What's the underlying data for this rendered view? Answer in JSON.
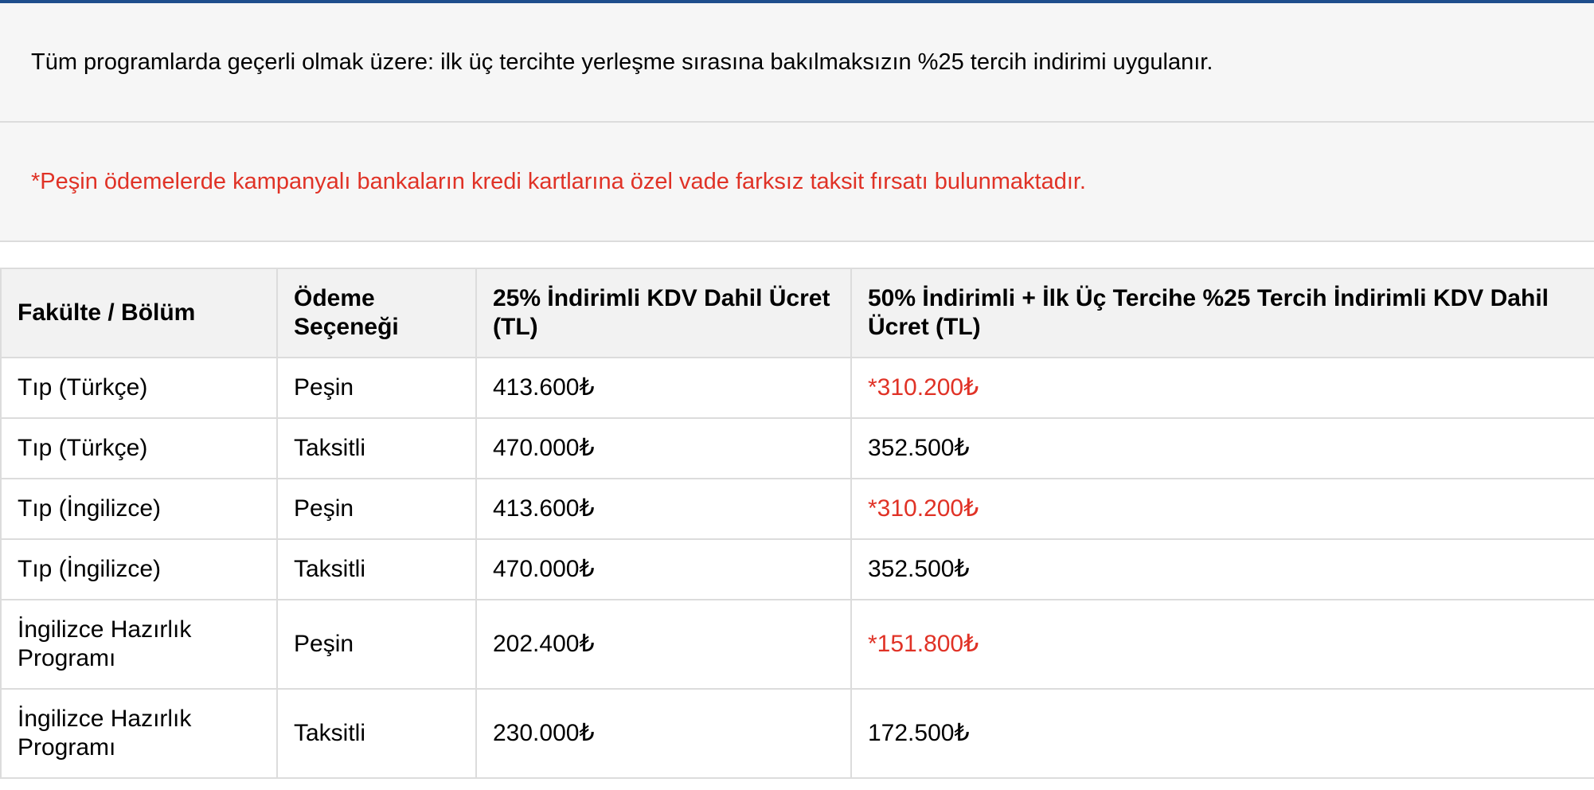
{
  "notice_general": "Tüm programlarda geçerli olmak üzere: ilk üç tercihte yerleşme sırasına bakılmaksızın %25 tercih indirimi uygulanır.",
  "notice_installment": "*Peşin ödemelerde kampanyalı bankaların kredi kartlarına özel vade farksız taksit fırsatı bulunmaktadır.",
  "colors": {
    "accent_bar": "#1f4e8c",
    "highlight_red": "#e03226"
  },
  "table": {
    "headers": [
      "Fakülte / Bölüm",
      "Ödeme Seçeneği",
      "25% İndirimli KDV Dahil Ücret (TL)",
      "50% İndirimli + İlk Üç Tercihe %25 Tercih İndirimli KDV Dahil Ücret (TL)"
    ],
    "rows": [
      {
        "program": "Tıp (Türkçe)",
        "payment": "Peşin",
        "fee_25": "413.600₺",
        "fee_50": "*310.200₺",
        "highlight": true
      },
      {
        "program": "Tıp (Türkçe)",
        "payment": "Taksitli",
        "fee_25": "470.000₺",
        "fee_50": "352.500₺",
        "highlight": false
      },
      {
        "program": "Tıp (İngilizce)",
        "payment": "Peşin",
        "fee_25": "413.600₺",
        "fee_50": "*310.200₺",
        "highlight": true
      },
      {
        "program": "Tıp (İngilizce)",
        "payment": "Taksitli",
        "fee_25": "470.000₺",
        "fee_50": "352.500₺",
        "highlight": false
      },
      {
        "program": "İngilizce Hazırlık Programı",
        "payment": "Peşin",
        "fee_25": "202.400₺",
        "fee_50": "*151.800₺",
        "highlight": true
      },
      {
        "program": "İngilizce Hazırlık Programı",
        "payment": "Taksitli",
        "fee_25": "230.000₺",
        "fee_50": "172.500₺",
        "highlight": false
      }
    ]
  }
}
